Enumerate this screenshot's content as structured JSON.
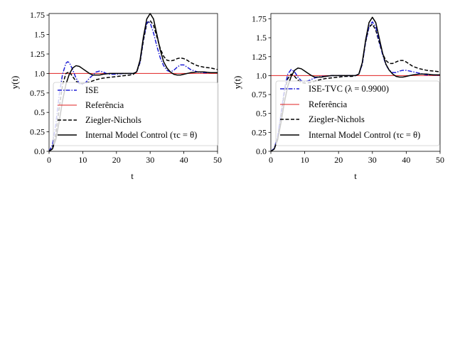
{
  "chart_data": [
    {
      "type": "line",
      "xlabel": "t",
      "ylabel": "y(t)",
      "xlim": [
        0,
        50
      ],
      "ylim": [
        0,
        1.77
      ],
      "xticks": [
        "0",
        "10",
        "20",
        "30",
        "40",
        "50"
      ],
      "yticks": [
        "0.0",
        "0.25",
        "0.5",
        "0.75",
        "1.0",
        "1.25",
        "1.5",
        "1.75"
      ],
      "legend_position": "lower-right",
      "series": [
        {
          "name": "ISE",
          "color": "#1f1fd6",
          "style": "dashdot",
          "x": [
            0,
            1,
            2,
            3,
            4,
            5,
            5.5,
            6,
            7,
            8,
            9,
            10,
            11,
            12,
            13,
            14,
            15,
            16,
            17,
            18,
            20,
            22,
            24,
            25,
            26,
            27,
            28,
            29,
            29.5,
            30,
            31,
            32,
            33,
            34,
            35,
            36,
            37,
            38,
            39,
            40,
            41,
            42,
            44,
            46,
            48,
            50
          ],
          "y": [
            0,
            0.08,
            0.35,
            0.72,
            0.99,
            1.13,
            1.15,
            1.14,
            1.05,
            0.94,
            0.87,
            0.86,
            0.89,
            0.94,
            0.98,
            1.02,
            1.03,
            1.02,
            1.0,
            0.99,
            0.99,
            1.0,
            1.0,
            1.0,
            1.02,
            1.15,
            1.45,
            1.65,
            1.67,
            1.65,
            1.52,
            1.35,
            1.2,
            1.1,
            1.04,
            1.02,
            1.04,
            1.08,
            1.11,
            1.11,
            1.08,
            1.05,
            1.02,
            1.01,
            1.01,
            1.01
          ]
        },
        {
          "name": "Referência",
          "color": "#e02020",
          "style": "solid",
          "x": [
            0,
            50
          ],
          "y": [
            1.0,
            1.0
          ]
        },
        {
          "name": "Ziegler-Nichols",
          "color": "#000000",
          "style": "dashed",
          "x": [
            0,
            1,
            2,
            3,
            4,
            5,
            6,
            7,
            8,
            9,
            10,
            12,
            14,
            16,
            18,
            20,
            22,
            24,
            25,
            26,
            27,
            28,
            29,
            30,
            31,
            32,
            33,
            34,
            35,
            36,
            37,
            38,
            39,
            40,
            41,
            42,
            44,
            46,
            48,
            50
          ],
          "y": [
            0,
            0.04,
            0.22,
            0.55,
            0.85,
            1.0,
            1.02,
            0.96,
            0.9,
            0.87,
            0.87,
            0.89,
            0.92,
            0.94,
            0.95,
            0.96,
            0.97,
            0.98,
            0.99,
            1.02,
            1.14,
            1.42,
            1.64,
            1.68,
            1.62,
            1.47,
            1.32,
            1.22,
            1.17,
            1.16,
            1.17,
            1.19,
            1.2,
            1.19,
            1.17,
            1.14,
            1.1,
            1.08,
            1.07,
            1.05
          ]
        },
        {
          "name": "Internal Model Control (τc = θ)",
          "color": "#000000",
          "style": "solid",
          "x": [
            0,
            1,
            2,
            3,
            4,
            5,
            6,
            7,
            8,
            9,
            10,
            11,
            12,
            13,
            14,
            15,
            16,
            18,
            20,
            22,
            24,
            25,
            26,
            27,
            28,
            29,
            30,
            31,
            32,
            33,
            34,
            35,
            36,
            37,
            38,
            39,
            40,
            42,
            44,
            46,
            48,
            50
          ],
          "y": [
            0,
            0.03,
            0.15,
            0.38,
            0.65,
            0.86,
            0.99,
            1.07,
            1.1,
            1.09,
            1.06,
            1.03,
            1.0,
            0.98,
            0.98,
            0.98,
            0.99,
            1.0,
            1.0,
            1.0,
            1.0,
            1.0,
            1.02,
            1.17,
            1.47,
            1.7,
            1.77,
            1.7,
            1.5,
            1.3,
            1.15,
            1.07,
            1.02,
            0.99,
            0.98,
            0.98,
            0.99,
            1.01,
            1.02,
            1.02,
            1.01,
            1.01
          ]
        }
      ]
    },
    {
      "type": "line",
      "xlabel": "t",
      "ylabel": "y(t)",
      "xlim": [
        0,
        50
      ],
      "ylim": [
        0,
        1.82
      ],
      "xticks": [
        "0",
        "10",
        "20",
        "30",
        "40",
        "50"
      ],
      "yticks": [
        "0.0",
        "0.25",
        "0.5",
        "0.75",
        "1.0",
        "1.25",
        "1.5",
        "1.75"
      ],
      "legend_position": "lower-right",
      "series": [
        {
          "name": "ISE-TVC (λ = 0.9900)",
          "color": "#1f1fd6",
          "style": "dashdot",
          "x": [
            0,
            1,
            2,
            3,
            4,
            5,
            6,
            7,
            8,
            9,
            10,
            11,
            12,
            13,
            14,
            15,
            16,
            18,
            20,
            22,
            24,
            25,
            26,
            27,
            28,
            29,
            30,
            31,
            32,
            33,
            34,
            35,
            36,
            37,
            38,
            39,
            40,
            42,
            44,
            46,
            48,
            50
          ],
          "y": [
            0,
            0.04,
            0.2,
            0.5,
            0.82,
            1.02,
            1.08,
            1.05,
            0.98,
            0.93,
            0.92,
            0.93,
            0.95,
            0.97,
            0.98,
            0.99,
            0.99,
            1.0,
            1.0,
            1.0,
            1.0,
            1.0,
            1.02,
            1.15,
            1.45,
            1.65,
            1.71,
            1.64,
            1.46,
            1.28,
            1.14,
            1.07,
            1.04,
            1.04,
            1.06,
            1.07,
            1.07,
            1.05,
            1.03,
            1.01,
            1.01,
            1.0
          ]
        },
        {
          "name": "Referência",
          "color": "#e02020",
          "style": "solid",
          "x": [
            0,
            50
          ],
          "y": [
            1.0,
            1.0
          ]
        },
        {
          "name": "Ziegler-Nichols",
          "color": "#000000",
          "style": "dashed",
          "x": [
            0,
            1,
            2,
            3,
            4,
            5,
            6,
            7,
            8,
            9,
            10,
            12,
            14,
            16,
            18,
            20,
            22,
            24,
            25,
            26,
            27,
            28,
            29,
            30,
            31,
            32,
            33,
            34,
            35,
            36,
            37,
            38,
            39,
            40,
            41,
            42,
            44,
            46,
            48,
            50
          ],
          "y": [
            0,
            0.03,
            0.18,
            0.48,
            0.78,
            0.96,
            1.02,
            0.99,
            0.94,
            0.91,
            0.9,
            0.91,
            0.94,
            0.96,
            0.97,
            0.98,
            0.99,
            0.99,
            1.0,
            1.02,
            1.15,
            1.44,
            1.64,
            1.68,
            1.6,
            1.44,
            1.29,
            1.2,
            1.16,
            1.16,
            1.18,
            1.2,
            1.2,
            1.18,
            1.15,
            1.12,
            1.09,
            1.07,
            1.06,
            1.05
          ]
        },
        {
          "name": "Internal Model Control (τc = θ)",
          "color": "#000000",
          "style": "solid",
          "x": [
            0,
            1,
            2,
            3,
            4,
            5,
            6,
            7,
            8,
            9,
            10,
            11,
            12,
            13,
            14,
            15,
            16,
            18,
            20,
            22,
            24,
            25,
            26,
            27,
            28,
            29,
            30,
            31,
            32,
            33,
            34,
            35,
            36,
            37,
            38,
            39,
            40,
            42,
            44,
            46,
            48,
            50
          ],
          "y": [
            0,
            0.03,
            0.15,
            0.38,
            0.65,
            0.86,
            0.99,
            1.07,
            1.1,
            1.09,
            1.06,
            1.03,
            1.0,
            0.98,
            0.98,
            0.98,
            0.99,
            1.0,
            1.0,
            1.0,
            1.0,
            1.0,
            1.02,
            1.17,
            1.47,
            1.7,
            1.77,
            1.7,
            1.5,
            1.3,
            1.15,
            1.07,
            1.02,
            0.99,
            0.98,
            0.98,
            0.99,
            1.01,
            1.02,
            1.02,
            1.01,
            1.01
          ]
        }
      ]
    }
  ]
}
